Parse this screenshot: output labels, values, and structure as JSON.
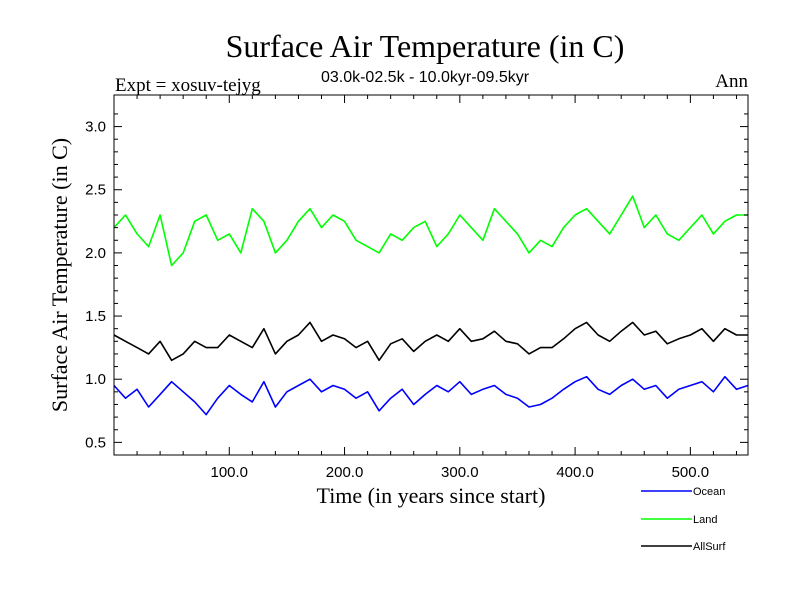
{
  "chart_data": {
    "type": "line",
    "title": "Surface Air Temperature (in C)",
    "subtitle": "03.0k-02.5k - 10.0kyr-09.5kyr",
    "expt_label": "Expt = xosuv-tejyg",
    "period_label": "Ann",
    "xlabel": "Time (in years since start)",
    "ylabel": "Surface Air Temperature (in C)",
    "xlim": [
      0,
      550
    ],
    "ylim": [
      0.4,
      3.25
    ],
    "x_ticks": [
      100,
      200,
      300,
      400,
      500
    ],
    "x_tick_labels": [
      "100.0",
      "200.0",
      "300.0",
      "400.0",
      "500.0"
    ],
    "y_ticks": [
      0.5,
      1.0,
      1.5,
      2.0,
      2.5,
      3.0
    ],
    "y_tick_labels": [
      "0.5",
      "1.0",
      "1.5",
      "2.0",
      "2.5",
      "3.0"
    ],
    "series": [
      {
        "name": "Ocean",
        "color": "#0000ff",
        "x": [
          0,
          10,
          20,
          30,
          40,
          50,
          60,
          70,
          80,
          90,
          100,
          110,
          120,
          130,
          140,
          150,
          160,
          170,
          180,
          190,
          200,
          210,
          220,
          230,
          240,
          250,
          260,
          270,
          280,
          290,
          300,
          310,
          320,
          330,
          340,
          350,
          360,
          370,
          380,
          390,
          400,
          410,
          420,
          430,
          440,
          450,
          460,
          470,
          480,
          490,
          500,
          510,
          520,
          530,
          540,
          550
        ],
        "values": [
          0.95,
          0.85,
          0.92,
          0.78,
          0.88,
          0.98,
          0.9,
          0.82,
          0.72,
          0.85,
          0.95,
          0.88,
          0.82,
          0.98,
          0.78,
          0.9,
          0.95,
          1.0,
          0.9,
          0.95,
          0.92,
          0.85,
          0.9,
          0.75,
          0.85,
          0.92,
          0.8,
          0.88,
          0.95,
          0.9,
          0.98,
          0.88,
          0.92,
          0.95,
          0.88,
          0.85,
          0.78,
          0.8,
          0.85,
          0.92,
          0.98,
          1.02,
          0.92,
          0.88,
          0.95,
          1.0,
          0.92,
          0.95,
          0.85,
          0.92,
          0.95,
          0.98,
          0.9,
          1.02,
          0.92,
          0.95
        ]
      },
      {
        "name": "Land",
        "color": "#00ff00",
        "x": [
          0,
          10,
          20,
          30,
          40,
          50,
          60,
          70,
          80,
          90,
          100,
          110,
          120,
          130,
          140,
          150,
          160,
          170,
          180,
          190,
          200,
          210,
          220,
          230,
          240,
          250,
          260,
          270,
          280,
          290,
          300,
          310,
          320,
          330,
          340,
          350,
          360,
          370,
          380,
          390,
          400,
          410,
          420,
          430,
          440,
          450,
          460,
          470,
          480,
          490,
          500,
          510,
          520,
          530,
          540,
          550
        ],
        "values": [
          2.2,
          2.3,
          2.15,
          2.05,
          2.3,
          1.9,
          2.0,
          2.25,
          2.3,
          2.1,
          2.15,
          2.0,
          2.35,
          2.25,
          2.0,
          2.1,
          2.25,
          2.35,
          2.2,
          2.3,
          2.25,
          2.1,
          2.05,
          2.0,
          2.15,
          2.1,
          2.2,
          2.25,
          2.05,
          2.15,
          2.3,
          2.2,
          2.1,
          2.35,
          2.25,
          2.15,
          2.0,
          2.1,
          2.05,
          2.2,
          2.3,
          2.35,
          2.25,
          2.15,
          2.3,
          2.45,
          2.2,
          2.3,
          2.15,
          2.1,
          2.2,
          2.3,
          2.15,
          2.25,
          2.3,
          2.3
        ]
      },
      {
        "name": "AllSurf",
        "color": "#000000",
        "x": [
          0,
          10,
          20,
          30,
          40,
          50,
          60,
          70,
          80,
          90,
          100,
          110,
          120,
          130,
          140,
          150,
          160,
          170,
          180,
          190,
          200,
          210,
          220,
          230,
          240,
          250,
          260,
          270,
          280,
          290,
          300,
          310,
          320,
          330,
          340,
          350,
          360,
          370,
          380,
          390,
          400,
          410,
          420,
          430,
          440,
          450,
          460,
          470,
          480,
          490,
          500,
          510,
          520,
          530,
          540,
          550
        ],
        "values": [
          1.35,
          1.3,
          1.25,
          1.2,
          1.3,
          1.15,
          1.2,
          1.3,
          1.25,
          1.25,
          1.35,
          1.3,
          1.25,
          1.4,
          1.2,
          1.3,
          1.35,
          1.45,
          1.3,
          1.35,
          1.32,
          1.25,
          1.3,
          1.15,
          1.28,
          1.32,
          1.22,
          1.3,
          1.35,
          1.3,
          1.4,
          1.3,
          1.32,
          1.38,
          1.3,
          1.28,
          1.2,
          1.25,
          1.25,
          1.32,
          1.4,
          1.45,
          1.35,
          1.3,
          1.38,
          1.45,
          1.35,
          1.38,
          1.28,
          1.32,
          1.35,
          1.4,
          1.3,
          1.4,
          1.35,
          1.35
        ]
      }
    ],
    "legend_placement": "bottom-right"
  }
}
